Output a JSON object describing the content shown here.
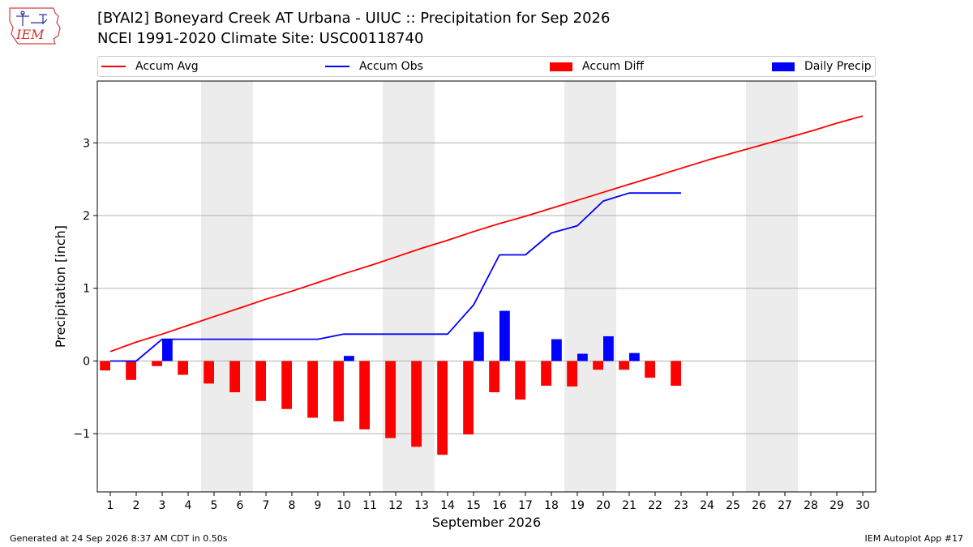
{
  "header": {
    "logo_text": "IEM",
    "title_line1": "[BYAI2] Boneyard Creek  AT Urbana - UIUC :: Precipitation for Sep 2026",
    "title_line2": "NCEI 1991-2020 Climate Site: USC00118740"
  },
  "legend": {
    "items": [
      {
        "label": "Accum Avg",
        "kind": "line",
        "color": "#ff0000"
      },
      {
        "label": "Accum Obs",
        "kind": "line",
        "color": "#0000ff"
      },
      {
        "label": "Accum Diff",
        "kind": "bar",
        "color": "#ff0000"
      },
      {
        "label": "Daily Precip",
        "kind": "bar",
        "color": "#0000ff"
      }
    ]
  },
  "chart_data": {
    "type": "line",
    "xlabel": "September 2026",
    "ylabel": "Precipitation [inch]",
    "x": [
      1,
      2,
      3,
      4,
      5,
      6,
      7,
      8,
      9,
      10,
      11,
      12,
      13,
      14,
      15,
      16,
      17,
      18,
      19,
      20,
      21,
      22,
      23,
      24,
      25,
      26,
      27,
      28,
      29,
      30
    ],
    "xlim": [
      0.5,
      30.5
    ],
    "ylim": [
      -1.8,
      3.85
    ],
    "yticks": [
      -1,
      0,
      1,
      2,
      3
    ],
    "ytick_labels": [
      "−1",
      "0",
      "1",
      "2",
      "3"
    ],
    "grid": "horizontal",
    "weekend_shading": [
      [
        4.5,
        6.5
      ],
      [
        11.5,
        13.5
      ],
      [
        18.5,
        20.5
      ],
      [
        25.5,
        27.5
      ]
    ],
    "series": [
      {
        "name": "Accum Avg",
        "kind": "line",
        "color": "#ff0000",
        "x": [
          1,
          2,
          3,
          4,
          5,
          6,
          7,
          8,
          9,
          10,
          11,
          12,
          13,
          14,
          15,
          16,
          17,
          18,
          19,
          20,
          21,
          22,
          23,
          24,
          25,
          26,
          27,
          28,
          29,
          30
        ],
        "values": [
          0.13,
          0.26,
          0.37,
          0.49,
          0.61,
          0.73,
          0.85,
          0.96,
          1.08,
          1.2,
          1.31,
          1.43,
          1.55,
          1.66,
          1.78,
          1.89,
          1.99,
          2.1,
          2.21,
          2.32,
          2.43,
          2.54,
          2.65,
          2.76,
          2.86,
          2.96,
          3.06,
          3.16,
          3.27,
          3.37
        ]
      },
      {
        "name": "Accum Obs",
        "kind": "line",
        "color": "#0000ff",
        "x": [
          1,
          2,
          3,
          4,
          5,
          6,
          7,
          8,
          9,
          10,
          11,
          12,
          13,
          14,
          15,
          16,
          17,
          18,
          19,
          20,
          21,
          22,
          23
        ],
        "values": [
          0.0,
          0.0,
          0.3,
          0.3,
          0.3,
          0.3,
          0.3,
          0.3,
          0.3,
          0.37,
          0.37,
          0.37,
          0.37,
          0.37,
          0.77,
          1.46,
          1.46,
          1.76,
          1.86,
          2.2,
          2.31,
          2.31,
          2.31
        ]
      },
      {
        "name": "Accum Diff",
        "kind": "bar",
        "color": "#ff0000",
        "offset": -0.2,
        "x": [
          1,
          2,
          3,
          4,
          5,
          6,
          7,
          8,
          9,
          10,
          11,
          12,
          13,
          14,
          15,
          16,
          17,
          18,
          19,
          20,
          21,
          22,
          23
        ],
        "values": [
          -0.13,
          -0.26,
          -0.07,
          -0.19,
          -0.31,
          -0.43,
          -0.55,
          -0.66,
          -0.78,
          -0.83,
          -0.94,
          -1.06,
          -1.18,
          -1.29,
          -1.01,
          -0.43,
          -0.53,
          -0.34,
          -0.35,
          -0.12,
          -0.12,
          -0.23,
          -0.34
        ]
      },
      {
        "name": "Daily Precip",
        "kind": "bar",
        "color": "#0000ff",
        "offset": 0.2,
        "x": [
          1,
          2,
          3,
          4,
          5,
          6,
          7,
          8,
          9,
          10,
          11,
          12,
          13,
          14,
          15,
          16,
          17,
          18,
          19,
          20,
          21,
          22,
          23
        ],
        "values": [
          0,
          0,
          0.3,
          0,
          0,
          0,
          0,
          0,
          0,
          0.07,
          0,
          0,
          0,
          0,
          0.4,
          0.69,
          0,
          0.3,
          0.1,
          0.34,
          0.11,
          0,
          0
        ]
      }
    ]
  },
  "footer": {
    "left": "Generated at 24 Sep 2026 8:37 AM CDT in 0.50s",
    "right": "IEM Autoplot App #17"
  }
}
